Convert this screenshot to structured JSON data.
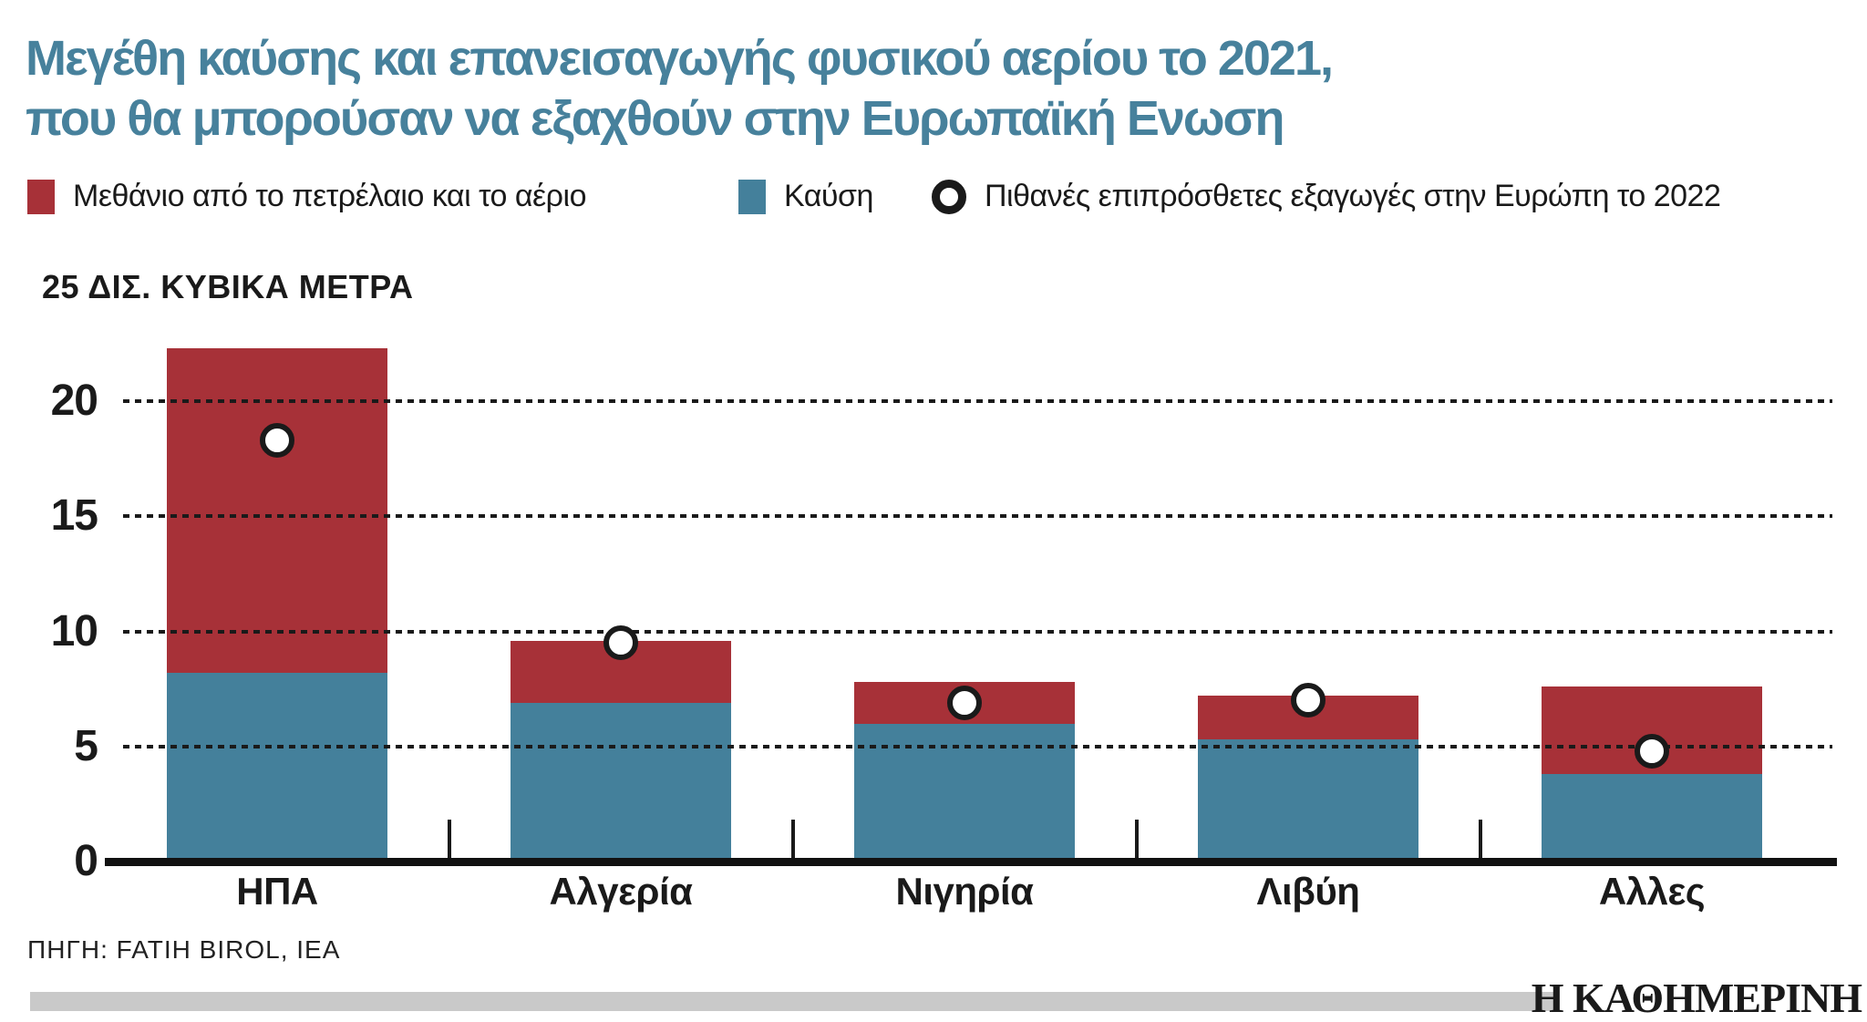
{
  "title": {
    "line1": "Μεγέθη καύσης και επανεισαγωγής φυσικού αερίου το 2021,",
    "line2": "που θα μπορούσαν να εξαχθούν στην Ευρωπαϊκή Ενωση"
  },
  "legend": {
    "methane": "Μεθάνιο από το πετρέλαιο και το αέριο",
    "flaring": "Καύση",
    "exports": "Πιθανές επιπρόσθετες εξαγωγές στην Ευρώπη το 2022"
  },
  "footer": {
    "source": "ΠΗΓΗ: FATIH BIROL, IEA",
    "logo": "Η ΚΑΘΗΜΕΡΙΝΗ"
  },
  "colors": {
    "title": "#47819c",
    "methane_red": "#a73138",
    "flaring_blue": "#44809b",
    "marker_ring": "#1a1a1a",
    "footer_bar": "#c9c9c9"
  },
  "chart_data": {
    "type": "bar",
    "stacked": true,
    "title": "Μεγέθη καύσης και επανεισαγωγής φυσικού αερίου το 2021, που θα μπορούσαν να εξαχθούν στην Ευρωπαϊκή Ενωση",
    "axis_top_label": "25 ΔΙΣ. ΚΥΒΙΚΑ ΜΕΤΡΑ",
    "unit": "δισ. κυβικά μέτρα",
    "categories": [
      "ΗΠΑ",
      "Αλγερία",
      "Νιγηρία",
      "Λιβύη",
      "Αλλες"
    ],
    "series": [
      {
        "name": "Καύση",
        "color": "#44809b",
        "values": [
          8.2,
          6.9,
          6.0,
          5.3,
          3.8
        ]
      },
      {
        "name": "Μεθάνιο από το πετρέλαιο και το αέριο",
        "color": "#a73138",
        "values": [
          14.1,
          2.7,
          1.8,
          1.9,
          3.8
        ]
      }
    ],
    "totals": [
      22.3,
      9.6,
      7.8,
      7.2,
      7.6
    ],
    "markers": {
      "name": "Πιθανές επιπρόσθετες εξαγωγές στην Ευρώπη το 2022",
      "values": [
        18.3,
        9.5,
        6.9,
        7.0,
        4.8
      ]
    },
    "ylim": [
      0,
      25
    ],
    "yticks": [
      0,
      5,
      10,
      15,
      20
    ],
    "grid": "horizontal-dotted",
    "legend_position": "top"
  }
}
